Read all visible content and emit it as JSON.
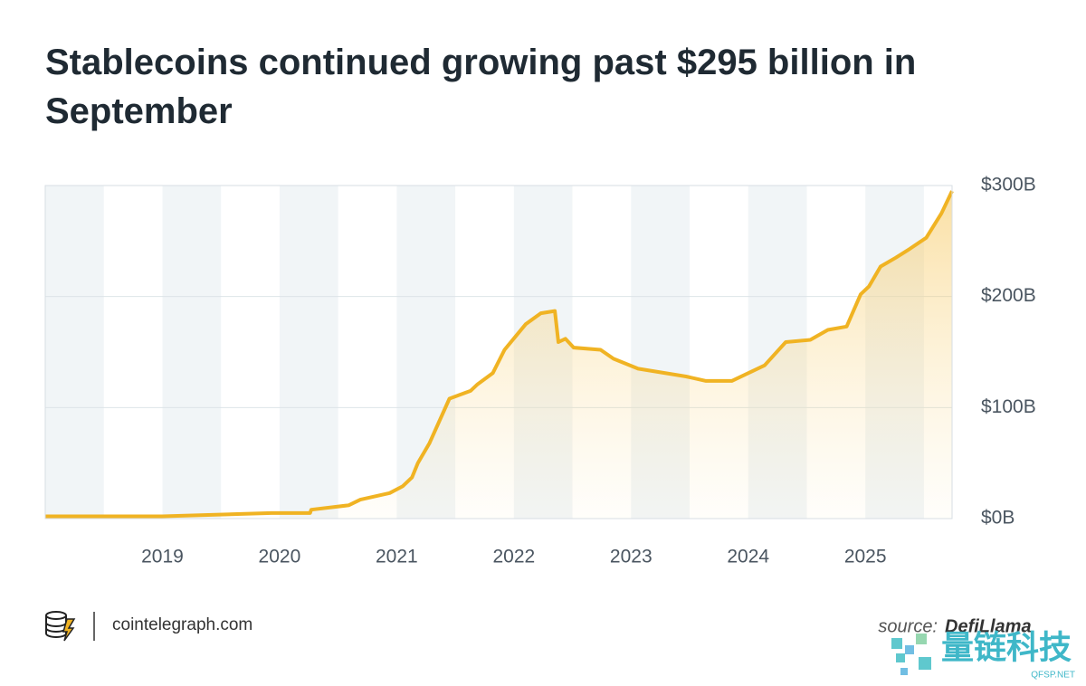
{
  "chart_data": {
    "type": "area",
    "title": "Stablecoins continued growing past $295 billion in September",
    "x": [
      2018.0,
      2019.0,
      2019.93,
      2020.26,
      2020.27,
      2020.59,
      2020.69,
      2020.94,
      2021.05,
      2021.13,
      2021.18,
      2021.28,
      2021.45,
      2021.63,
      2021.69,
      2021.82,
      2021.92,
      2022.1,
      2022.23,
      2022.35,
      2022.38,
      2022.44,
      2022.51,
      2022.74,
      2022.85,
      2023.06,
      2023.47,
      2023.64,
      2023.86,
      2024.14,
      2024.32,
      2024.53,
      2024.68,
      2024.84,
      2024.96,
      2025.03,
      2025.13,
      2025.26,
      2025.38,
      2025.52,
      2025.65,
      2025.74
    ],
    "values": [
      2,
      2,
      5,
      5,
      8,
      12,
      17,
      23,
      29,
      37,
      50,
      68,
      108,
      115,
      121,
      131,
      152,
      175,
      185,
      187,
      159,
      162,
      154,
      152,
      144,
      135,
      128,
      124,
      124,
      138,
      159,
      161,
      170,
      173,
      202,
      209,
      227,
      235,
      243,
      253,
      275,
      295
    ],
    "color": "#f0b323",
    "xlim": [
      2018.0,
      2025.74
    ],
    "xticks": [
      2019,
      2020,
      2021,
      2022,
      2023,
      2024,
      2025
    ],
    "ylim": [
      0,
      300
    ],
    "yticks": [
      {
        "value": 0,
        "label": "$0B"
      },
      {
        "value": 100,
        "label": "$100B"
      },
      {
        "value": 200,
        "label": "$200B"
      },
      {
        "value": 300,
        "label": "$300B"
      }
    ],
    "grid": true,
    "site": "cointelegraph.com",
    "source_label": "source:",
    "source": "DefiLlama",
    "watermark": "量链科技",
    "watermark_sub": "QFSP.NET"
  }
}
